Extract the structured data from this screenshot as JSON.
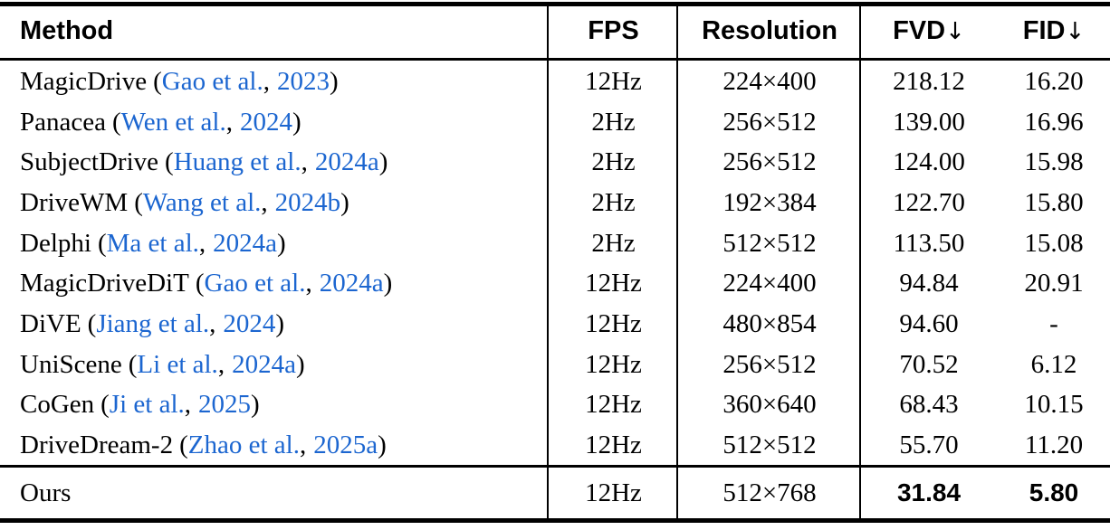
{
  "colors": {
    "citation_blue": "#1c66d0",
    "text": "#000000",
    "rule": "#000000",
    "background": "#ffffff"
  },
  "table": {
    "header": {
      "method": "Method",
      "fps": "FPS",
      "resolution": "Resolution",
      "fvd": "FVD",
      "fvd_arrow": "↓",
      "fid": "FID",
      "fid_arrow": "↓"
    },
    "citation": {
      "open": "(",
      "sep": ",",
      "close": ")"
    },
    "rows": [
      {
        "name": "MagicDrive",
        "authors": "Gao et al.",
        "year": "2023",
        "fps": "12Hz",
        "resolution": "224×400",
        "fvd": "218.12",
        "fid": "16.20"
      },
      {
        "name": "Panacea",
        "authors": "Wen et al.",
        "year": "2024",
        "fps": "2Hz",
        "resolution": "256×512",
        "fvd": "139.00",
        "fid": "16.96"
      },
      {
        "name": "SubjectDrive",
        "authors": "Huang et al.",
        "year": "2024a",
        "fps": "2Hz",
        "resolution": "256×512",
        "fvd": "124.00",
        "fid": "15.98"
      },
      {
        "name": "DriveWM",
        "authors": "Wang et al.",
        "year": "2024b",
        "fps": "2Hz",
        "resolution": "192×384",
        "fvd": "122.70",
        "fid": "15.80"
      },
      {
        "name": "Delphi",
        "authors": "Ma et al.",
        "year": "2024a",
        "fps": "2Hz",
        "resolution": "512×512",
        "fvd": "113.50",
        "fid": "15.08"
      },
      {
        "name": "MagicDriveDiT",
        "authors": "Gao et al.",
        "year": "2024a",
        "fps": "12Hz",
        "resolution": "224×400",
        "fvd": "94.84",
        "fid": "20.91"
      },
      {
        "name": "DiVE",
        "authors": "Jiang et al.",
        "year": "2024",
        "fps": "12Hz",
        "resolution": "480×854",
        "fvd": "94.60",
        "fid": "-"
      },
      {
        "name": "UniScene",
        "authors": "Li et al.",
        "year": "2024a",
        "fps": "12Hz",
        "resolution": "256×512",
        "fvd": "70.52",
        "fid": "6.12"
      },
      {
        "name": "CoGen",
        "authors": "Ji et al.",
        "year": "2025",
        "fps": "12Hz",
        "resolution": "360×640",
        "fvd": "68.43",
        "fid": "10.15"
      },
      {
        "name": "DriveDream-2",
        "authors": "Zhao et al.",
        "year": "2025a",
        "fps": "12Hz",
        "resolution": "512×512",
        "fvd": "55.70",
        "fid": "11.20"
      }
    ],
    "ours": {
      "name": "Ours",
      "fps": "12Hz",
      "resolution": "512×768",
      "fvd": "31.84",
      "fid": "5.80"
    }
  }
}
